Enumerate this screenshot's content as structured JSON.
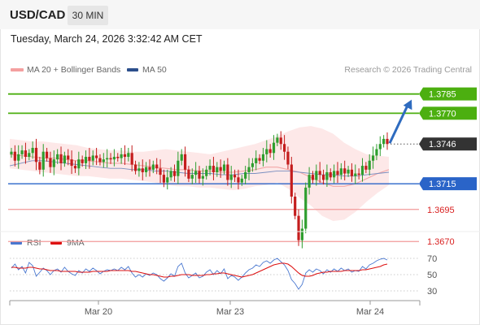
{
  "header": {
    "pair": "USD/CAD",
    "timeframe": "30 MIN"
  },
  "timestamp": "Tuesday, March 24, 2026 3:32:42 AM CET",
  "legend": {
    "ma20_label": "MA 20 + Bollinger Bands",
    "ma50_label": "MA 50",
    "credit": "Research © 2026 Trading Central"
  },
  "colors": {
    "green": "#4caf10",
    "blue": "#2a64c8",
    "red": "#e85a5a",
    "arrow": "#2e6bbf",
    "band": "#fde4e4",
    "dark": "#333333"
  },
  "chart_data": [
    {
      "type": "candlestick",
      "ylim": [
        1.366,
        1.38
      ],
      "levels": [
        {
          "value": 1.3785,
          "label": "1.3785",
          "kind": "resistance"
        },
        {
          "value": 1.377,
          "label": "1.3770",
          "kind": "resistance"
        },
        {
          "value": 1.3746,
          "label": "1.3746",
          "kind": "last"
        },
        {
          "value": 1.3715,
          "label": "1.3715",
          "kind": "pivot"
        },
        {
          "value": 1.3695,
          "label": "1.3695",
          "kind": "support"
        },
        {
          "value": 1.367,
          "label": "1.3670",
          "kind": "support"
        }
      ],
      "price_path": [
        1.374,
        1.3733,
        1.3738,
        1.3741,
        1.3736,
        1.3739,
        1.3743,
        1.3732,
        1.3726,
        1.374,
        1.3735,
        1.3728,
        1.3734,
        1.3738,
        1.3731,
        1.3737,
        1.3734,
        1.3729,
        1.3727,
        1.3734,
        1.3731,
        1.3736,
        1.3733,
        1.3737,
        1.3735,
        1.3732,
        1.3734,
        1.3735,
        1.3734,
        1.3736,
        1.3735,
        1.3738,
        1.3736,
        1.3739,
        1.373,
        1.3725,
        1.3727,
        1.3724,
        1.3728,
        1.3726,
        1.373,
        1.3727,
        1.3722,
        1.3716,
        1.372,
        1.3725,
        1.3721,
        1.3733,
        1.3738,
        1.3726,
        1.3719,
        1.3722,
        1.3725,
        1.3719,
        1.3721,
        1.3726,
        1.3729,
        1.3724,
        1.3728,
        1.3725,
        1.373,
        1.3718,
        1.3722,
        1.372,
        1.3716,
        1.3719,
        1.3724,
        1.3728,
        1.3731,
        1.3735,
        1.3733,
        1.3738,
        1.3742,
        1.3739,
        1.3747,
        1.3751,
        1.3746,
        1.374,
        1.373,
        1.3705,
        1.369,
        1.3671,
        1.368,
        1.3712,
        1.3722,
        1.3718,
        1.3725,
        1.3722,
        1.3718,
        1.3724,
        1.372,
        1.3725,
        1.3722,
        1.3727,
        1.3723,
        1.3726,
        1.3721,
        1.3723,
        1.3722,
        1.3729,
        1.3726,
        1.3733,
        1.3737,
        1.3742,
        1.3746,
        1.375,
        1.3746
      ],
      "ma20": [
        1.3738,
        1.3737,
        1.3736,
        1.3735,
        1.3735,
        1.3734,
        1.3733,
        1.3733,
        1.3732,
        1.3731,
        1.3731,
        1.373,
        1.3729,
        1.3728,
        1.3727,
        1.3726,
        1.3726,
        1.3725,
        1.3725,
        1.3724,
        1.3724,
        1.3725,
        1.3726,
        1.3728,
        1.3728,
        1.3726,
        1.3724,
        1.372,
        1.3716,
        1.3713,
        1.3713,
        1.3715,
        1.3719,
        1.3723,
        1.3726
      ],
      "ma50": [
        1.3729,
        1.3731,
        1.3733,
        1.3733,
        1.3732,
        1.3731,
        1.373,
        1.3729,
        1.3728,
        1.3727,
        1.3727,
        1.3726,
        1.3726,
        1.3725,
        1.3725,
        1.3724,
        1.3723,
        1.3723,
        1.3723,
        1.3722,
        1.3722,
        1.3723,
        1.3723,
        1.3724,
        1.3725,
        1.3725,
        1.3724,
        1.3723,
        1.3722,
        1.3722,
        1.3721,
        1.3721,
        1.3722,
        1.3723,
        1.3724
      ],
      "bb_upper": [
        1.375,
        1.3749,
        1.3748,
        1.3748,
        1.3747,
        1.3746,
        1.3745,
        1.3743,
        1.3742,
        1.3741,
        1.3741,
        1.374,
        1.374,
        1.3741,
        1.3742,
        1.3741,
        1.374,
        1.3739,
        1.3738,
        1.374,
        1.3742,
        1.3744,
        1.3746,
        1.3749,
        1.3752,
        1.3756,
        1.3759,
        1.376,
        1.3758,
        1.3754,
        1.3747,
        1.3742,
        1.3738,
        1.3737,
        1.3736
      ],
      "bb_lower": [
        1.3727,
        1.3726,
        1.3725,
        1.3724,
        1.3723,
        1.3722,
        1.3721,
        1.3721,
        1.372,
        1.3719,
        1.3719,
        1.3718,
        1.3717,
        1.3716,
        1.3714,
        1.3713,
        1.3713,
        1.3712,
        1.3712,
        1.3711,
        1.371,
        1.3711,
        1.3713,
        1.3714,
        1.3716,
        1.3711,
        1.3704,
        1.3698,
        1.369,
        1.3686,
        1.3687,
        1.3693,
        1.3701,
        1.3708,
        1.3714
      ],
      "projection": {
        "from": 1.3746,
        "to": 1.3785
      }
    },
    {
      "type": "line",
      "title": "",
      "legend": [
        "RSI",
        "9MA"
      ],
      "ylim": [
        20,
        80
      ],
      "ticks": [
        "70",
        "50",
        "30"
      ],
      "tick_values": [
        70,
        50,
        30
      ],
      "x_ticks": [
        "Mar 20",
        "Mar 23",
        "Mar 24"
      ],
      "series": [
        {
          "name": "RSI",
          "color": "#4a78d0",
          "values": [
            58,
            63,
            56,
            60,
            52,
            65,
            61,
            48,
            53,
            58,
            55,
            50,
            55,
            57,
            53,
            59,
            54,
            51,
            49,
            55,
            52,
            57,
            54,
            58,
            55,
            51,
            54,
            56,
            55,
            57,
            55,
            59,
            56,
            60,
            52,
            47,
            50,
            47,
            51,
            49,
            52,
            50,
            45,
            42,
            46,
            51,
            48,
            60,
            64,
            52,
            46,
            49,
            52,
            46,
            48,
            53,
            56,
            50,
            55,
            51,
            57,
            45,
            49,
            47,
            43,
            47,
            52,
            56,
            58,
            62,
            60,
            65,
            67,
            64,
            68,
            70,
            66,
            62,
            55,
            44,
            39,
            32,
            38,
            52,
            56,
            53,
            57,
            55,
            51,
            56,
            53,
            57,
            54,
            58,
            55,
            57,
            53,
            55,
            54,
            60,
            57,
            62,
            64,
            67,
            69,
            70,
            68
          ]
        },
        {
          "name": "9MA",
          "color": "#dd1111",
          "values": [
            59,
            59,
            58,
            58,
            58,
            59,
            59,
            58,
            57,
            57,
            56,
            55,
            55,
            55,
            54,
            54,
            54,
            54,
            54,
            53,
            53,
            53,
            53,
            54,
            54,
            54,
            54,
            54,
            55,
            55,
            55,
            55,
            55,
            55,
            54,
            54,
            53,
            52,
            51,
            50,
            50,
            49,
            48,
            47,
            47,
            48,
            48,
            49,
            50,
            50,
            50,
            49,
            49,
            49,
            49,
            50,
            50,
            51,
            51,
            52,
            52,
            51,
            50,
            49,
            48,
            47,
            48,
            49,
            50,
            52,
            54,
            56,
            58,
            60,
            62,
            63,
            64,
            64,
            63,
            60,
            56,
            52,
            49,
            48,
            48,
            49,
            51,
            52,
            53,
            53,
            54,
            54,
            54,
            54,
            55,
            55,
            55,
            55,
            55,
            56,
            56,
            57,
            58,
            59,
            60,
            62,
            63
          ]
        }
      ]
    }
  ]
}
